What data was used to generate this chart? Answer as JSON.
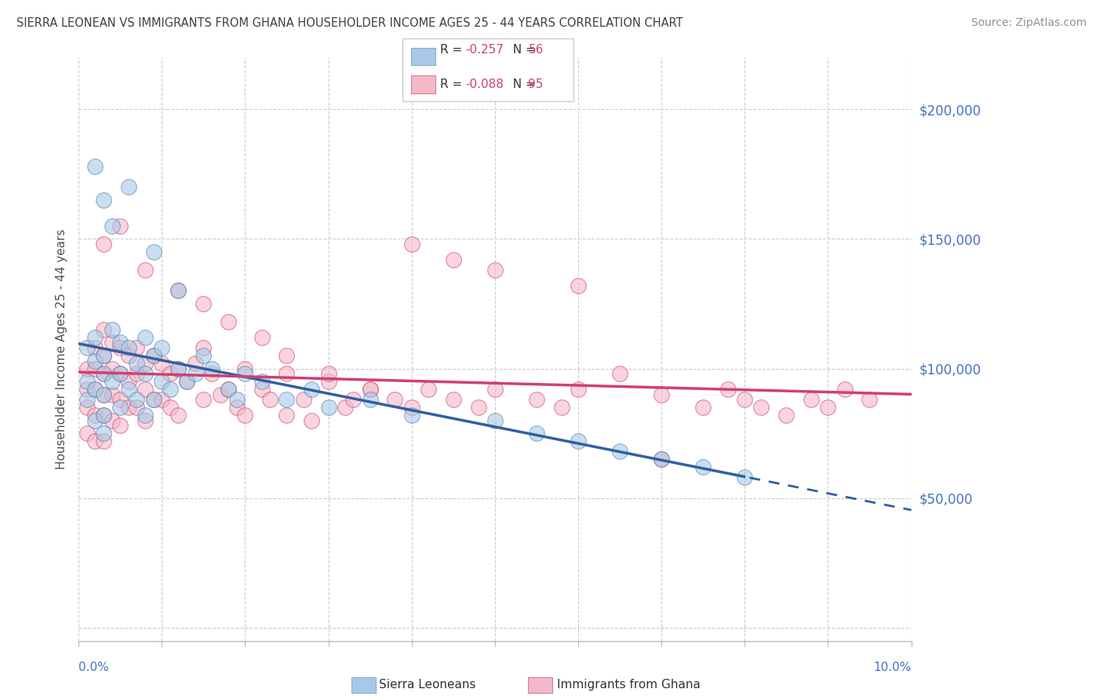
{
  "title": "SIERRA LEONEAN VS IMMIGRANTS FROM GHANA HOUSEHOLDER INCOME AGES 25 - 44 YEARS CORRELATION CHART",
  "source": "Source: ZipAtlas.com",
  "ylabel": "Householder Income Ages 25 - 44 years",
  "yticks": [
    0,
    50000,
    100000,
    150000,
    200000
  ],
  "ytick_labels": [
    "",
    "$50,000",
    "$100,000",
    "$150,000",
    "$200,000"
  ],
  "xmin": 0.0,
  "xmax": 0.1,
  "ymin": -5000,
  "ymax": 220000,
  "legend1_R": "R = -0.257",
  "legend1_N": "N = 56",
  "legend2_R": "R = -0.088",
  "legend2_N": "N = 95",
  "legend_label1": "Sierra Leoneans",
  "legend_label2": "Immigrants from Ghana",
  "color_blue": "#a8c8e8",
  "color_pink": "#f4b8c8",
  "color_trend_blue": "#3060a0",
  "color_trend_pink": "#d04070",
  "color_axis": "#4472C4",
  "title_color": "#404040",
  "source_color": "#909090",
  "background_color": "#ffffff",
  "grid_color": "#cccccc",
  "sierra_x": [
    0.001,
    0.001,
    0.001,
    0.002,
    0.002,
    0.002,
    0.002,
    0.003,
    0.003,
    0.003,
    0.003,
    0.003,
    0.004,
    0.004,
    0.005,
    0.005,
    0.005,
    0.006,
    0.006,
    0.007,
    0.007,
    0.008,
    0.008,
    0.008,
    0.009,
    0.009,
    0.01,
    0.01,
    0.011,
    0.012,
    0.013,
    0.014,
    0.015,
    0.016,
    0.018,
    0.019,
    0.02,
    0.022,
    0.025,
    0.028,
    0.03,
    0.035,
    0.04,
    0.05,
    0.055,
    0.06,
    0.065,
    0.07,
    0.075,
    0.08,
    0.002,
    0.003,
    0.004,
    0.006,
    0.009,
    0.012
  ],
  "sierra_y": [
    108000,
    95000,
    88000,
    112000,
    103000,
    92000,
    80000,
    105000,
    98000,
    90000,
    82000,
    75000,
    115000,
    95000,
    110000,
    98000,
    85000,
    108000,
    92000,
    102000,
    88000,
    112000,
    98000,
    82000,
    105000,
    88000,
    108000,
    95000,
    92000,
    100000,
    95000,
    98000,
    105000,
    100000,
    92000,
    88000,
    98000,
    95000,
    88000,
    92000,
    85000,
    88000,
    82000,
    80000,
    75000,
    72000,
    68000,
    65000,
    62000,
    58000,
    178000,
    165000,
    155000,
    170000,
    145000,
    130000
  ],
  "ghana_x": [
    0.001,
    0.001,
    0.001,
    0.001,
    0.002,
    0.002,
    0.002,
    0.002,
    0.002,
    0.003,
    0.003,
    0.003,
    0.003,
    0.003,
    0.003,
    0.004,
    0.004,
    0.004,
    0.004,
    0.005,
    0.005,
    0.005,
    0.005,
    0.006,
    0.006,
    0.006,
    0.007,
    0.007,
    0.007,
    0.008,
    0.008,
    0.008,
    0.009,
    0.009,
    0.01,
    0.01,
    0.011,
    0.011,
    0.012,
    0.012,
    0.013,
    0.014,
    0.015,
    0.015,
    0.016,
    0.017,
    0.018,
    0.019,
    0.02,
    0.02,
    0.022,
    0.023,
    0.025,
    0.025,
    0.027,
    0.028,
    0.03,
    0.032,
    0.033,
    0.035,
    0.038,
    0.04,
    0.042,
    0.045,
    0.048,
    0.05,
    0.055,
    0.058,
    0.06,
    0.065,
    0.07,
    0.075,
    0.078,
    0.08,
    0.082,
    0.085,
    0.088,
    0.09,
    0.092,
    0.095,
    0.003,
    0.005,
    0.008,
    0.012,
    0.015,
    0.018,
    0.022,
    0.025,
    0.03,
    0.035,
    0.04,
    0.045,
    0.05,
    0.06,
    0.07
  ],
  "ghana_y": [
    100000,
    92000,
    85000,
    75000,
    108000,
    100000,
    92000,
    82000,
    72000,
    115000,
    105000,
    98000,
    90000,
    82000,
    72000,
    110000,
    100000,
    90000,
    80000,
    108000,
    98000,
    88000,
    78000,
    105000,
    95000,
    85000,
    108000,
    98000,
    85000,
    102000,
    92000,
    80000,
    105000,
    88000,
    102000,
    88000,
    98000,
    85000,
    100000,
    82000,
    95000,
    102000,
    108000,
    88000,
    98000,
    90000,
    92000,
    85000,
    100000,
    82000,
    92000,
    88000,
    98000,
    82000,
    88000,
    80000,
    95000,
    85000,
    88000,
    92000,
    88000,
    85000,
    92000,
    88000,
    85000,
    92000,
    88000,
    85000,
    92000,
    98000,
    90000,
    85000,
    92000,
    88000,
    85000,
    82000,
    88000,
    85000,
    92000,
    88000,
    148000,
    155000,
    138000,
    130000,
    125000,
    118000,
    112000,
    105000,
    98000,
    92000,
    148000,
    142000,
    138000,
    132000,
    65000
  ]
}
